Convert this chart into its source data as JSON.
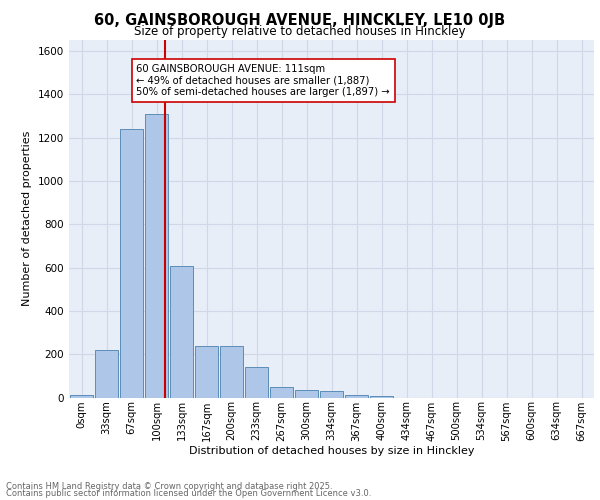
{
  "title_line1": "60, GAINSBOROUGH AVENUE, HINCKLEY, LE10 0JB",
  "title_line2": "Size of property relative to detached houses in Hinckley",
  "xlabel": "Distribution of detached houses by size in Hinckley",
  "ylabel": "Number of detached properties",
  "bar_labels": [
    "0sqm",
    "33sqm",
    "67sqm",
    "100sqm",
    "133sqm",
    "167sqm",
    "200sqm",
    "233sqm",
    "267sqm",
    "300sqm",
    "334sqm",
    "367sqm",
    "400sqm",
    "434sqm",
    "467sqm",
    "500sqm",
    "534sqm",
    "567sqm",
    "600sqm",
    "634sqm",
    "667sqm"
  ],
  "bar_values": [
    10,
    220,
    1240,
    1310,
    605,
    240,
    240,
    140,
    50,
    35,
    28,
    10,
    5,
    0,
    0,
    0,
    0,
    0,
    0,
    0,
    0
  ],
  "bar_color": "#aec6e8",
  "bar_edge_color": "#5b8db8",
  "grid_color": "#d0d8e8",
  "background_color": "#e8eef8",
  "vline_color": "#cc0000",
  "annotation_text": "60 GAINSBOROUGH AVENUE: 111sqm\n← 49% of detached houses are smaller (1,887)\n50% of semi-detached houses are larger (1,897) →",
  "annotation_box_color": "#ffffff",
  "annotation_box_edge": "#cc0000",
  "ylim": [
    0,
    1650
  ],
  "yticks": [
    0,
    200,
    400,
    600,
    800,
    1000,
    1200,
    1400,
    1600
  ],
  "footer_line1": "Contains HM Land Registry data © Crown copyright and database right 2025.",
  "footer_line2": "Contains public sector information licensed under the Open Government Licence v3.0."
}
